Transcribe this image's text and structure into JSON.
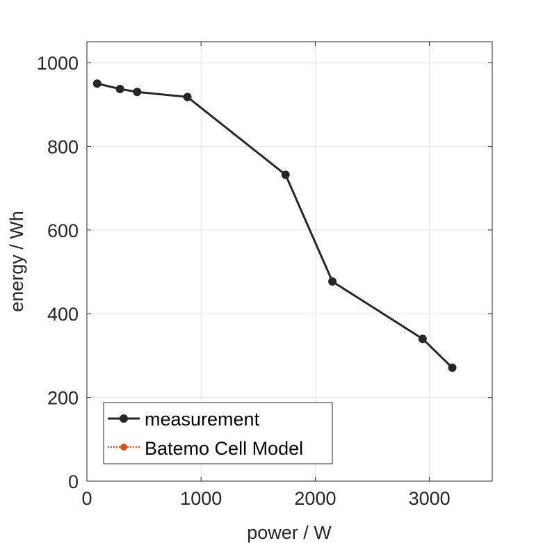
{
  "chart_data": {
    "type": "line",
    "title": "",
    "xlabel": "power / W",
    "ylabel": "energy / Wh",
    "xlim": [
      0,
      3550
    ],
    "ylim": [
      0,
      1050
    ],
    "xticks": [
      0,
      1000,
      2000,
      3000
    ],
    "yticks": [
      0,
      200,
      400,
      600,
      800,
      1000
    ],
    "grid": true,
    "legend_position": "bottom-left",
    "series": [
      {
        "name": "measurement",
        "color": "#262626",
        "style": "solid",
        "marker": "circle",
        "x": [
          90,
          290,
          440,
          880,
          1740,
          2150,
          2940,
          3200
        ],
        "y": [
          950,
          937,
          930,
          918,
          732,
          477,
          340,
          271
        ]
      },
      {
        "name": "Batemo Cell Model",
        "color": "#D95319",
        "style": "dotted",
        "marker": "circle",
        "x": [],
        "y": []
      }
    ]
  }
}
